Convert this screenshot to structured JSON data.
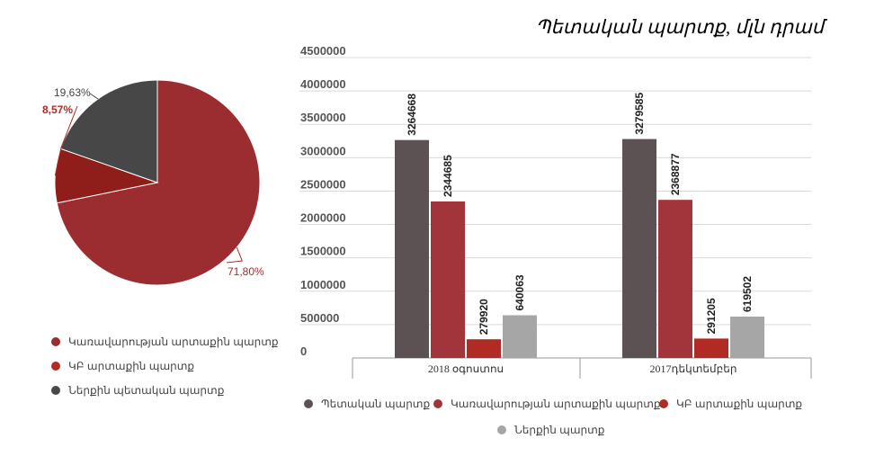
{
  "title": "Պետական պարտք, մլն դրամ",
  "colors": {
    "state": "#5c5253",
    "government_external": "#a1353b",
    "cb_external": "#b12a24",
    "domestic": "#a6a6a6",
    "pie_gov_external": "#9b2d31",
    "pie_cb_external": "#8f1d1a",
    "pie_domestic": "#474747",
    "grid": "#d9d9d9"
  },
  "pie": {
    "labels": [
      "19,63%",
      "8,57%",
      "71,80%"
    ],
    "legend": [
      {
        "label": "Կառավարության արտաքին պարտք",
        "color": "#9b2d31"
      },
      {
        "label": "ԿԲ արտաքին պարտք",
        "color": "#b12a24"
      },
      {
        "label": "Ներքին պետական պարտք",
        "color": "#474747"
      }
    ]
  },
  "bar_legend": [
    {
      "label": "Պետական պարտք",
      "color": "#5c5253"
    },
    {
      "label": "Կառավարության արտաքին պարտք",
      "color": "#a1353b"
    },
    {
      "label": "ԿԲ արտաքին պարտք",
      "color": "#b12a24"
    },
    {
      "label": "Ներքին պարտք",
      "color": "#a6a6a6"
    }
  ],
  "chart_data": [
    {
      "type": "pie",
      "slices": [
        {
          "label": "Կառավարության արտաքին պարտք",
          "value": 71.8,
          "display": "71,80%"
        },
        {
          "label": "ԿԲ արտաքին պարտք",
          "value": 8.57,
          "display": "8,57%"
        },
        {
          "label": "Ներքին պետական պարտք",
          "value": 19.63,
          "display": "19,63%"
        }
      ]
    },
    {
      "type": "bar",
      "title": "Պետական պարտք, մլն դրամ",
      "categories": [
        "2018 օգոստոս",
        "2017դեկտեմբեր"
      ],
      "series": [
        {
          "name": "Պետական պարտք",
          "values": [
            3264668,
            3279585
          ]
        },
        {
          "name": "Կառավարության արտաքին պարտք",
          "values": [
            2344685,
            2368877
          ]
        },
        {
          "name": "ԿԲ արտաքին պարտք",
          "values": [
            279920,
            291205
          ]
        },
        {
          "name": "Ներքին պարտք",
          "values": [
            640063,
            619502
          ]
        }
      ],
      "ylim": [
        0,
        4500000
      ],
      "yticks": [
        "0",
        "500000",
        "1000000",
        "1500000",
        "2000000",
        "2500000",
        "3000000",
        "3500000",
        "4000000",
        "4500000"
      ],
      "grid": true,
      "legend": "bottom"
    }
  ]
}
